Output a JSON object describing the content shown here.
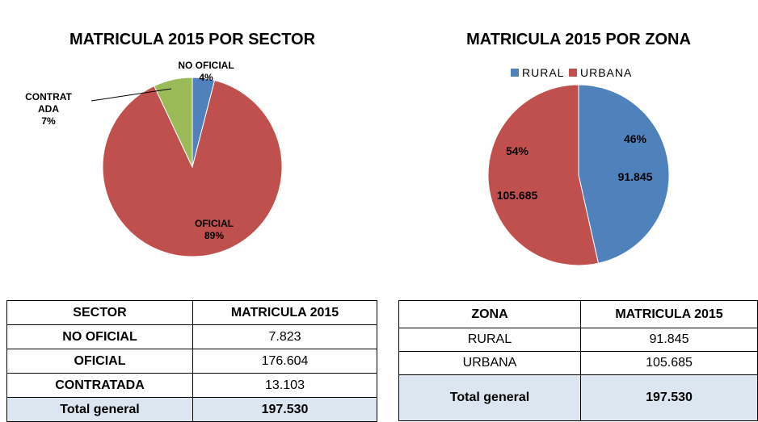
{
  "chart_data": [
    {
      "type": "pie",
      "title": "MATRICULA 2015 POR SECTOR",
      "categories": [
        "NO OFICIAL",
        "OFICIAL",
        "CONTRATADA"
      ],
      "values": [
        4,
        89,
        7
      ],
      "value_labels": [
        "4%",
        "89%",
        "7%"
      ],
      "colors": [
        "#4f81bd",
        "#c0504d",
        "#9bbb59"
      ]
    },
    {
      "type": "pie",
      "title": "MATRICULA 2015 POR ZONA",
      "categories": [
        "RURAL",
        "URBANA"
      ],
      "values": [
        91845,
        105685
      ],
      "value_labels": [
        "91.845",
        "105.685"
      ],
      "percents": [
        46,
        54
      ],
      "percent_labels": [
        "46%",
        "54%"
      ],
      "colors": [
        "#4f81bd",
        "#c0504d"
      ],
      "legend": "top"
    }
  ],
  "tables": [
    {
      "header": [
        "SECTOR",
        "MATRICULA 2015"
      ],
      "rows": [
        [
          "NO OFICIAL",
          "7.823"
        ],
        [
          "OFICIAL",
          "176.604"
        ],
        [
          "CONTRATADA",
          "13.103"
        ]
      ],
      "total": [
        "Total general",
        "197.530"
      ]
    },
    {
      "header": [
        "ZONA",
        "MATRICULA 2015"
      ],
      "rows": [
        [
          "RURAL",
          "91.845"
        ],
        [
          "URBANA",
          "105.685"
        ]
      ],
      "total": [
        "Total general",
        "197.530"
      ]
    }
  ]
}
